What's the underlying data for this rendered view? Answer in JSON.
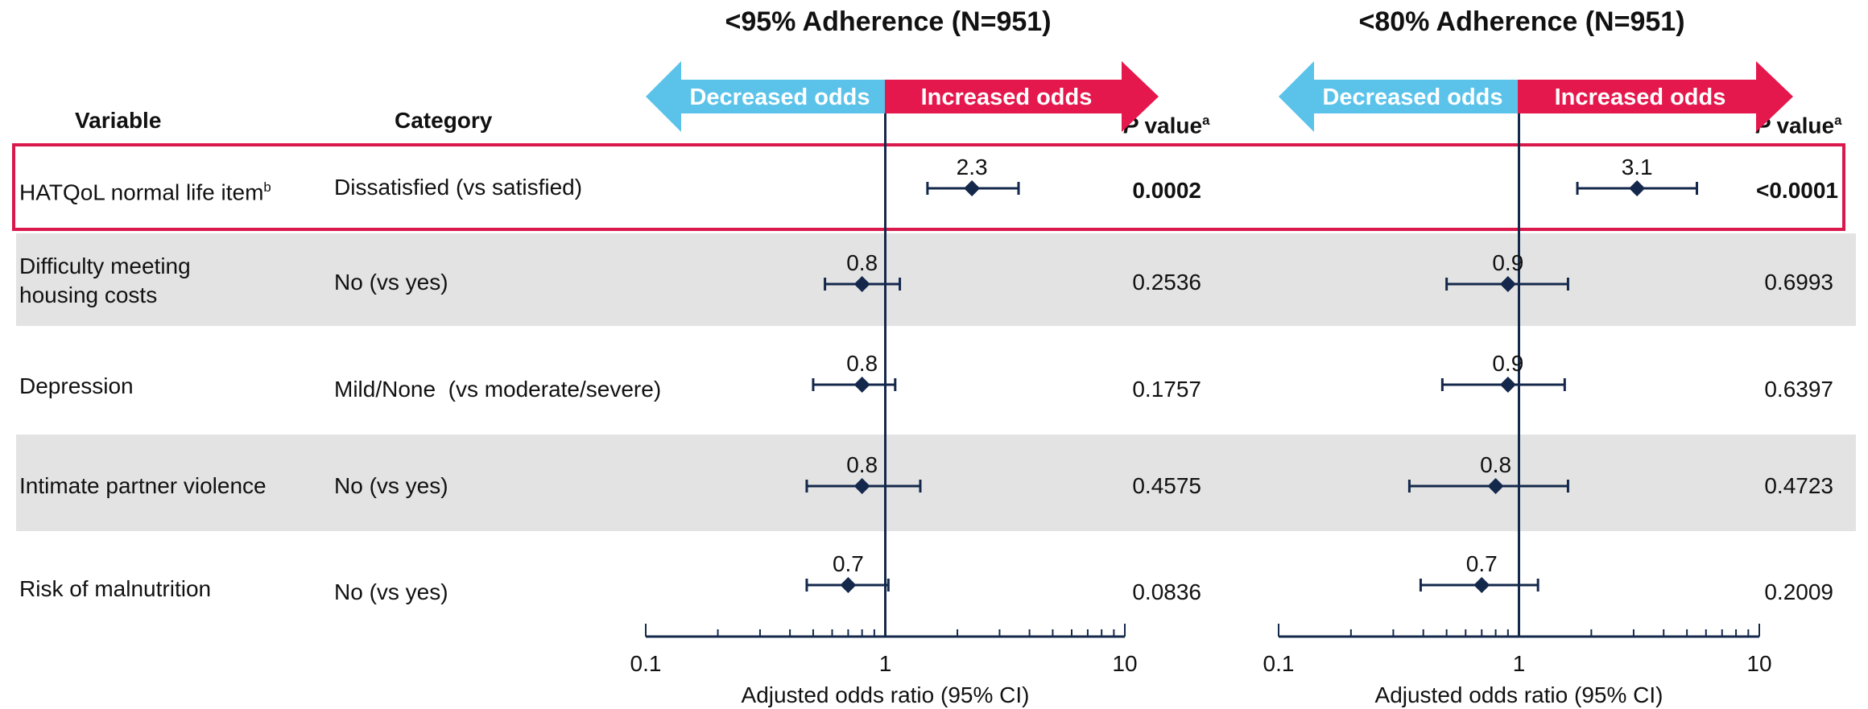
{
  "headers": {
    "variable": "Variable",
    "category": "Category",
    "pvalue_prefix": "P",
    "pvalue_text": " value",
    "pvalue_sup": "a"
  },
  "arrows": {
    "decreased": "Decreased odds",
    "increased": "Increased odds"
  },
  "colors": {
    "decreased_arrow": "#5bc3ea",
    "increased_arrow": "#e5184d",
    "highlight_box": "#d9184b",
    "band": "#e3e3e3",
    "marker": "#14284b"
  },
  "rows": [
    {
      "variable": "HATQoL normal life item",
      "variable_sup": "b",
      "category": "Dissatisfied (vs satisfied)",
      "highlight": true,
      "band": false
    },
    {
      "variable": "Difficulty meeting housing costs",
      "variable_sup": "",
      "category": "No (vs yes)",
      "highlight": false,
      "band": true
    },
    {
      "variable": "Depression",
      "variable_sup": "",
      "category": "Mild/None  (vs moderate/severe)",
      "highlight": false,
      "band": false
    },
    {
      "variable": "Intimate partner violence",
      "variable_sup": "",
      "category": "No (vs yes)",
      "highlight": false,
      "band": true
    },
    {
      "variable": "Risk of malnutrition",
      "variable_sup": "",
      "category": "No (vs yes)",
      "highlight": false,
      "band": false
    }
  ],
  "chart_data": [
    {
      "type": "forest",
      "title": "<95% Adherence (N=951)",
      "xlabel": "Adjusted odds ratio (95% CI)",
      "xscale": "log",
      "xlim": [
        0.1,
        10
      ],
      "xticks": [
        "0.1",
        "1",
        "10"
      ],
      "reference_line": 1,
      "points": [
        {
          "row": "HATQoL normal life item",
          "or": 2.3,
          "ci_low": 1.5,
          "ci_high": 3.6,
          "label": "2.3",
          "p": "0.0002",
          "p_bold": true
        },
        {
          "row": "Difficulty meeting housing costs",
          "or": 0.8,
          "ci_low": 0.56,
          "ci_high": 1.15,
          "label": "0.8",
          "p": "0.2536",
          "p_bold": false
        },
        {
          "row": "Depression",
          "or": 0.8,
          "ci_low": 0.5,
          "ci_high": 1.1,
          "label": "0.8",
          "p": "0.1757",
          "p_bold": false
        },
        {
          "row": "Intimate partner violence",
          "or": 0.8,
          "ci_low": 0.47,
          "ci_high": 1.4,
          "label": "0.8",
          "p": "0.4575",
          "p_bold": false
        },
        {
          "row": "Risk of malnutrition",
          "or": 0.7,
          "ci_low": 0.47,
          "ci_high": 1.03,
          "label": "0.7",
          "p": "0.0836",
          "p_bold": false
        }
      ]
    },
    {
      "type": "forest",
      "title": "<80% Adherence (N=951)",
      "xlabel": "Adjusted odds ratio (95% CI)",
      "xscale": "log",
      "xlim": [
        0.1,
        10
      ],
      "xticks": [
        "0.1",
        "1",
        "10"
      ],
      "reference_line": 1,
      "points": [
        {
          "row": "HATQoL normal life item",
          "or": 3.1,
          "ci_low": 1.75,
          "ci_high": 5.5,
          "label": "3.1",
          "p": "<0.0001",
          "p_bold": true
        },
        {
          "row": "Difficulty meeting housing costs",
          "or": 0.9,
          "ci_low": 0.5,
          "ci_high": 1.6,
          "label": "0.9",
          "p": "0.6993",
          "p_bold": false
        },
        {
          "row": "Depression",
          "or": 0.9,
          "ci_low": 0.48,
          "ci_high": 1.55,
          "label": "0.9",
          "p": "0.6397",
          "p_bold": false
        },
        {
          "row": "Intimate partner violence",
          "or": 0.8,
          "ci_low": 0.35,
          "ci_high": 1.6,
          "label": "0.8",
          "p": "0.4723",
          "p_bold": false
        },
        {
          "row": "Risk of malnutrition",
          "or": 0.7,
          "ci_low": 0.39,
          "ci_high": 1.2,
          "label": "0.7",
          "p": "0.2009",
          "p_bold": false
        }
      ]
    }
  ]
}
